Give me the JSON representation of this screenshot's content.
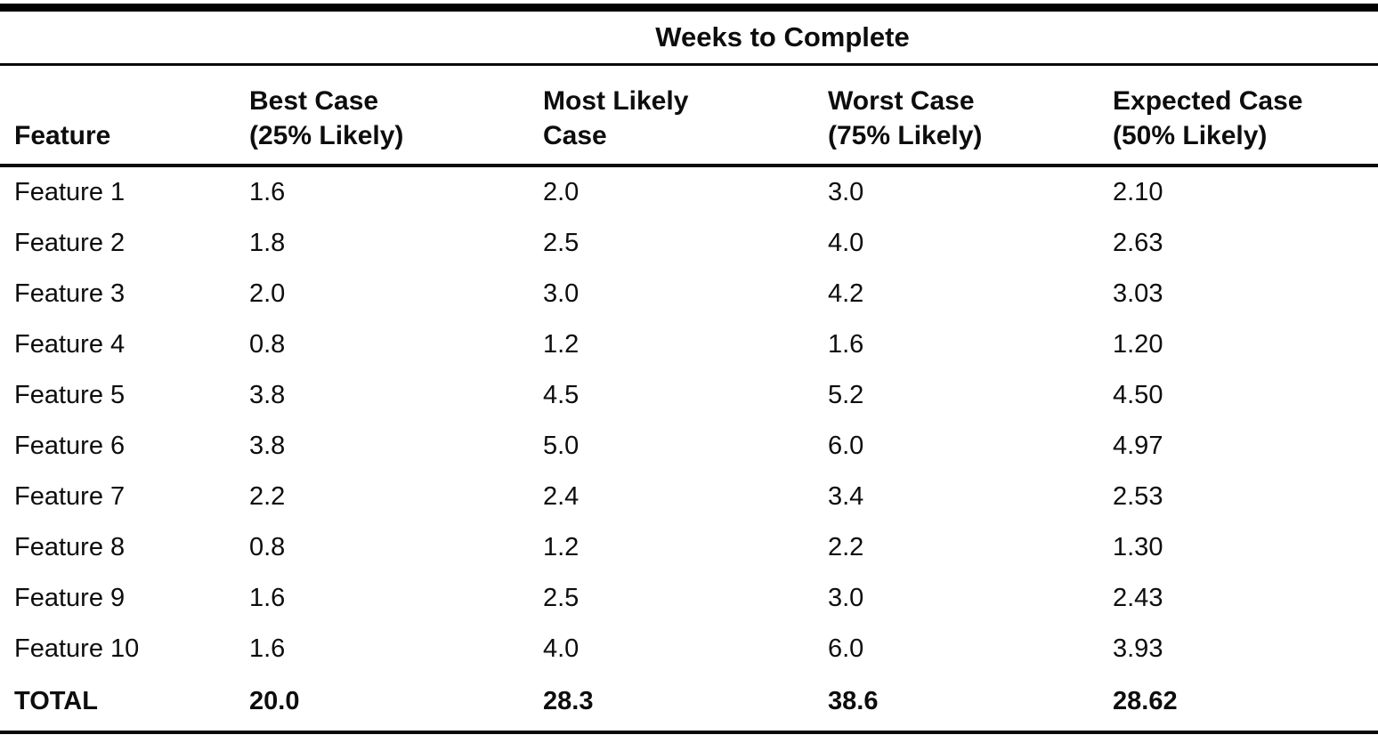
{
  "chart_data": {
    "type": "table",
    "title": "Weeks to Complete",
    "columns": [
      "Feature",
      "Best Case (25% Likely)",
      "Most Likely Case",
      "Worst Case (75% Likely)",
      "Expected Case (50% Likely)"
    ],
    "headers": [
      {
        "line1": "Feature",
        "line2": ""
      },
      {
        "line1": "Best Case",
        "line2": "(25% Likely)"
      },
      {
        "line1": "Most Likely",
        "line2": "Case"
      },
      {
        "line1": "Worst Case",
        "line2": "(75% Likely)"
      },
      {
        "line1": "Expected Case",
        "line2": "(50% Likely)"
      }
    ],
    "rows": [
      [
        "Feature 1",
        "1.6",
        "2.0",
        "3.0",
        "2.10"
      ],
      [
        "Feature 2",
        "1.8",
        "2.5",
        "4.0",
        "2.63"
      ],
      [
        "Feature 3",
        "2.0",
        "3.0",
        "4.2",
        "3.03"
      ],
      [
        "Feature 4",
        "0.8",
        "1.2",
        "1.6",
        "1.20"
      ],
      [
        "Feature 5",
        "3.8",
        "4.5",
        "5.2",
        "4.50"
      ],
      [
        "Feature 6",
        "3.8",
        "5.0",
        "6.0",
        "4.97"
      ],
      [
        "Feature 7",
        "2.2",
        "2.4",
        "3.4",
        "2.53"
      ],
      [
        "Feature 8",
        "0.8",
        "1.2",
        "2.2",
        "1.30"
      ],
      [
        "Feature 9",
        "1.6",
        "2.5",
        "3.0",
        "2.43"
      ],
      [
        "Feature 10",
        "1.6",
        "4.0",
        "6.0",
        "3.93"
      ]
    ],
    "total_row": [
      "TOTAL",
      "20.0",
      "28.3",
      "38.6",
      "28.62"
    ]
  },
  "colors": {
    "text": "#0d0d0d",
    "rule": "#000000",
    "background": "#ffffff"
  }
}
